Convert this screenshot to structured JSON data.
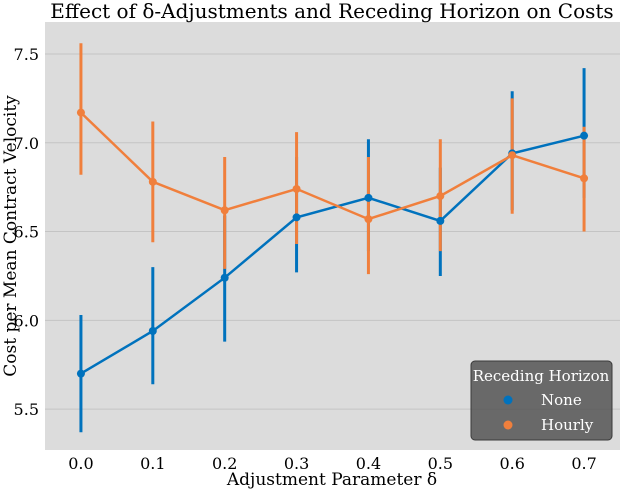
{
  "chart_data": {
    "type": "line",
    "title": "Effect of δ-Adjustments and Receding Horizon on Costs",
    "xlabel": "Adjustment Parameter δ",
    "ylabel": "Cost per Mean Contract Velocity",
    "x": [
      0.0,
      0.1,
      0.2,
      0.3,
      0.4,
      0.5,
      0.6,
      0.7
    ],
    "xticks": [
      "0.0",
      "0.1",
      "0.2",
      "0.3",
      "0.4",
      "0.5",
      "0.6",
      "0.7"
    ],
    "xlim": [
      -0.05,
      0.75
    ],
    "yticks": [
      "5.5",
      "6.0",
      "6.5",
      "7.0",
      "7.5"
    ],
    "ylim": [
      5.27,
      7.68
    ],
    "grid": true,
    "legend": {
      "title": "Receding Horizon",
      "placement": "bottom-right"
    },
    "series": [
      {
        "name": "None",
        "color": "#0072BD",
        "values": [
          5.7,
          5.94,
          6.24,
          6.58,
          6.69,
          6.56,
          6.94,
          7.04
        ],
        "lower": [
          5.37,
          5.64,
          5.88,
          6.27,
          6.39,
          6.25,
          6.62,
          6.69
        ],
        "upper": [
          6.03,
          6.3,
          6.59,
          6.92,
          7.02,
          6.86,
          7.29,
          7.42
        ]
      },
      {
        "name": "Hourly",
        "color": "#F07F3C",
        "values": [
          7.17,
          6.78,
          6.62,
          6.74,
          6.57,
          6.7,
          6.93,
          6.8
        ],
        "lower": [
          6.82,
          6.44,
          6.29,
          6.43,
          6.26,
          6.39,
          6.6,
          6.5
        ],
        "upper": [
          7.56,
          7.12,
          6.92,
          7.06,
          6.92,
          7.02,
          7.25,
          7.09
        ]
      }
    ]
  }
}
